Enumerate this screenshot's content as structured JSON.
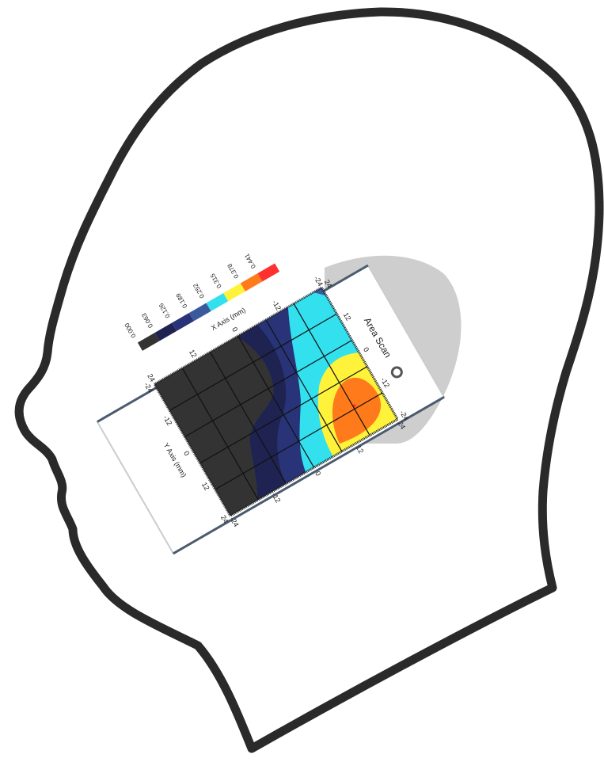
{
  "title": "Area Scan",
  "x_axis_label": "X Axis (mm)",
  "y_axis_label": "Y Axis (mm)",
  "ticks": [
    "-24",
    "-12",
    "0",
    "12",
    "24"
  ],
  "legend": [
    {
      "label": "0.000",
      "color": "#333333"
    },
    {
      "label": "0.063",
      "color": "#1e2352"
    },
    {
      "label": "0.126",
      "color": "#283477"
    },
    {
      "label": "0.189",
      "color": "#3b5a9e"
    },
    {
      "label": "0.252",
      "color": "#33e0ee"
    },
    {
      "label": "0.315",
      "color": "#fff23a"
    },
    {
      "label": "0.378",
      "color": "#ff7a1a"
    },
    {
      "label": "0.441",
      "color": "#ff3030"
    }
  ]
}
